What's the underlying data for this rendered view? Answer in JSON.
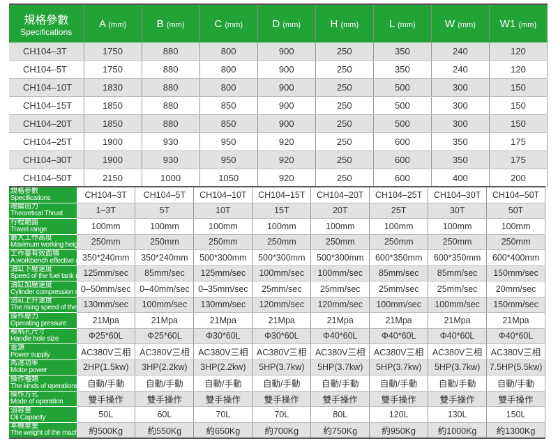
{
  "dimensions": {
    "header_cn": "規格參數",
    "header_en": "Specifications",
    "unit": "(mm)",
    "columns": [
      "A",
      "B",
      "C",
      "D",
      "H",
      "L",
      "W",
      "W1"
    ],
    "rows": [
      {
        "model": "CH104–3T",
        "values": [
          "1750",
          "880",
          "800",
          "900",
          "250",
          "350",
          "240",
          "120"
        ]
      },
      {
        "model": "CH104–5T",
        "values": [
          "1750",
          "880",
          "800",
          "900",
          "250",
          "350",
          "240",
          "120"
        ]
      },
      {
        "model": "CH104–10T",
        "values": [
          "1830",
          "880",
          "800",
          "900",
          "250",
          "500",
          "300",
          "150"
        ]
      },
      {
        "model": "CH104–15T",
        "values": [
          "1850",
          "880",
          "850",
          "900",
          "250",
          "500",
          "300",
          "150"
        ]
      },
      {
        "model": "CH104–20T",
        "values": [
          "1850",
          "880",
          "850",
          "900",
          "250",
          "500",
          "300",
          "150"
        ]
      },
      {
        "model": "CH104–25T",
        "values": [
          "1900",
          "930",
          "950",
          "920",
          "250",
          "600",
          "350",
          "175"
        ]
      },
      {
        "model": "CH104–30T",
        "values": [
          "1900",
          "930",
          "950",
          "920",
          "250",
          "600",
          "350",
          "175"
        ]
      },
      {
        "model": "CH104–50T",
        "values": [
          "2150",
          "1000",
          "1050",
          "920",
          "250",
          "600",
          "400",
          "200"
        ]
      }
    ]
  },
  "specs": {
    "rows": [
      {
        "cn": "規格參數",
        "en": "Specifications",
        "values": [
          "CH104–3T",
          "CH104–5T",
          "CH104–10T",
          "CH104–15T",
          "CH104–20T",
          "CH104–25T",
          "CH104–30T",
          "CH104–50T"
        ]
      },
      {
        "cn": "理論出力",
        "en": "Theoretical Thrust",
        "values": [
          "1–3T",
          "5T",
          "10T",
          "15T",
          "20T",
          "25T",
          "30T",
          "50T"
        ]
      },
      {
        "cn": "行程範圍",
        "en": "Travel range",
        "values": [
          "100mm",
          "100mm",
          "100mm",
          "100mm",
          "100mm",
          "100mm",
          "100mm",
          "100mm"
        ]
      },
      {
        "cn": "最大工作高度",
        "en": "Maximum working height",
        "values": [
          "250mm",
          "250mm",
          "250mm",
          "250mm",
          "250mm",
          "250mm",
          "250mm",
          "250mm"
        ]
      },
      {
        "cn": "工作臺有效面積",
        "en": "A workbench effective area",
        "values": [
          "350*240mm",
          "350*240mm",
          "500*300mm",
          "500*300mm",
          "500*300mm",
          "600*350mm",
          "600*350mm",
          "600*400mm"
        ]
      },
      {
        "cn": "油缸下壓速度",
        "en": "Speed of the fuel tank under pressure",
        "values": [
          "125mm/sec",
          "85mm/sec",
          "125mm/sec",
          "100mm/sec",
          "100mm/sec",
          "85mm/sec",
          "85mm/sec",
          "150mm/sec"
        ]
      },
      {
        "cn": "油缸加壓速度",
        "en": "Cylinder compression speed",
        "values": [
          "0–50mm/sec",
          "0–40mm/sec",
          "0–35mm/sec",
          "25mm/sec",
          "25mm/sec",
          "25mm/sec",
          "25mm/sec",
          "20mm/sec"
        ]
      },
      {
        "cn": "油缸上升速度",
        "en": "The rising speed of the cylinder",
        "values": [
          "130mm/sec",
          "100mm/sec",
          "130mm/sec",
          "120mm/sec",
          "120mm/sec",
          "100mm/sec",
          "100mm/sec",
          "150mm/sec"
        ]
      },
      {
        "cn": "操作壓力",
        "en": "Operating pressure",
        "values": [
          "21Mpa",
          "21Mpa",
          "21Mpa",
          "21Mpa",
          "21Mpa",
          "21Mpa",
          "21Mpa",
          "21Mpa"
        ]
      },
      {
        "cn": "模柄孔尺寸",
        "en": "Handle hole size",
        "values": [
          "Φ25*60L",
          "Φ25*60L",
          "Φ30*60L",
          "Φ30*60L",
          "Φ40*60L",
          "Φ40*60L",
          "Φ40*60L",
          "Φ40*60L"
        ]
      },
      {
        "cn": "電源",
        "en": "Power supply",
        "values": [
          "AC380V三相",
          "AC380V三相",
          "AC380V三相",
          "AC380V三相",
          "AC380V三相",
          "AC380V三相",
          "AC380V三相",
          "AC380V三相"
        ]
      },
      {
        "cn": "馬達功率",
        "en": "Motor power",
        "values": [
          "2HP(1.5kw)",
          "3HP(2.2kw)",
          "3HP(2.2kw)",
          "5HP(3.7kw)",
          "5HP(3.7kw)",
          "5HP(3.7kw)",
          "5HP(3.7kw)",
          "7.5HP(5.5kw)"
        ]
      },
      {
        "cn": "操作種類",
        "en": "The kinds of operations",
        "values": [
          "自動/手動",
          "自動/手動",
          "自動/手動",
          "自動/手動",
          "自動/手動",
          "自動/手動",
          "自動/手動",
          "自動/手動"
        ]
      },
      {
        "cn": "操作方式",
        "en": "Mode of operation",
        "values": [
          "雙手操作",
          "雙手操作",
          "雙手操作",
          "雙手操作",
          "雙手操作",
          "雙手操作",
          "雙手操作",
          "雙手操作"
        ]
      },
      {
        "cn": "油容量",
        "en": "Oil Capacity",
        "values": [
          "50L",
          "60L",
          "70L",
          "70L",
          "80L",
          "120L",
          "130L",
          "150L"
        ]
      },
      {
        "cn": "本機重量",
        "en": "The weight of the machine",
        "values": [
          "約500Kg",
          "約550Kg",
          "約650Kg",
          "約700Kg",
          "約750Kg",
          "約950Kg",
          "約1000Kg",
          "約1300Kg"
        ]
      }
    ]
  },
  "colors": {
    "header_green": "#21a336",
    "row_alt": "#e2e2e2"
  }
}
